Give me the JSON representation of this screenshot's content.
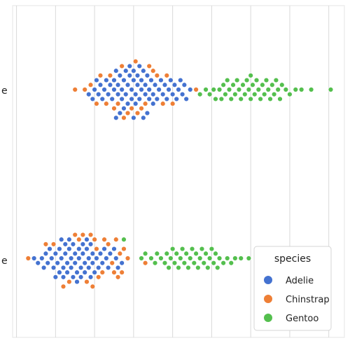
{
  "chart_data": {
    "type": "scatter",
    "subtype": "swarm",
    "orientation": "horizontal",
    "title": "",
    "xlabel": "",
    "ylabel": "",
    "xlim": [
      -0.1,
      8.4
    ],
    "categories": [
      {
        "key": "top",
        "tick_label": "e"
      },
      {
        "key": "bottom",
        "tick_label": "e"
      }
    ],
    "grid": "vertical lines only",
    "legend": {
      "title": "species",
      "placement": "bottom-right",
      "entries": [
        {
          "label": "Adelie",
          "color": "#4472d0"
        },
        {
          "label": "Chinstrap",
          "color": "#ee7f36"
        },
        {
          "label": "Gentoo",
          "color": "#54bf4e"
        }
      ]
    },
    "series": [
      {
        "name": "Adelie",
        "color": "#4472d0",
        "values": {
          "top": [
            1.85,
            1.95,
            2.0,
            2.05,
            2.1,
            2.15,
            2.2,
            2.25,
            2.3,
            2.35,
            2.4,
            2.45,
            2.5,
            2.5,
            2.55,
            2.55,
            2.6,
            2.6,
            2.65,
            2.65,
            2.7,
            2.7,
            2.75,
            2.75,
            2.8,
            2.8,
            2.85,
            2.85,
            2.9,
            2.9,
            2.95,
            2.95,
            3.0,
            3.0,
            3.0,
            3.05,
            3.05,
            3.1,
            3.1,
            3.15,
            3.15,
            3.2,
            3.2,
            3.25,
            3.25,
            3.3,
            3.3,
            3.35,
            3.35,
            3.4,
            3.4,
            3.45,
            3.5,
            3.5,
            3.55,
            3.6,
            3.65,
            3.7,
            3.75,
            3.8,
            3.85,
            3.9,
            3.95,
            4.0,
            4.05,
            4.1,
            4.15,
            4.2,
            4.25,
            4.3,
            4.35,
            4.45
          ],
          "bottom": [
            0.45,
            0.55,
            0.65,
            0.7,
            0.75,
            0.8,
            0.85,
            0.9,
            0.95,
            1.0,
            1.0,
            1.05,
            1.1,
            1.1,
            1.15,
            1.15,
            1.2,
            1.2,
            1.25,
            1.25,
            1.3,
            1.3,
            1.35,
            1.35,
            1.4,
            1.4,
            1.45,
            1.45,
            1.5,
            1.5,
            1.55,
            1.55,
            1.6,
            1.6,
            1.65,
            1.65,
            1.7,
            1.7,
            1.75,
            1.75,
            1.8,
            1.8,
            1.85,
            1.85,
            1.9,
            1.9,
            1.95,
            1.95,
            2.0,
            2.05,
            2.1,
            2.15,
            2.2,
            2.25,
            2.3,
            2.35,
            2.4,
            2.5,
            2.55,
            2.6,
            2.7
          ]
        }
      },
      {
        "name": "Chinstrap",
        "color": "#ee7f36",
        "values": {
          "top": [
            1.5,
            1.75,
            1.9,
            2.05,
            2.15,
            2.3,
            2.4,
            2.5,
            2.6,
            2.7,
            2.75,
            2.85,
            2.95,
            3.05,
            3.1,
            3.2,
            3.3,
            3.4,
            3.5,
            3.6,
            3.75,
            3.85,
            4.0,
            4.6
          ],
          "bottom": [
            0.3,
            0.75,
            0.95,
            1.2,
            1.35,
            1.5,
            1.6,
            1.7,
            1.8,
            1.9,
            1.95,
            2.0,
            2.05,
            2.1,
            2.2,
            2.25,
            2.35,
            2.45,
            2.5,
            2.55,
            2.6,
            2.65,
            2.7,
            2.75,
            2.85,
            3.3
          ]
        }
      },
      {
        "name": "Gentoo",
        "color": "#54bf4e",
        "values": {
          "top": [
            4.7,
            4.85,
            4.95,
            5.05,
            5.1,
            5.2,
            5.25,
            5.3,
            5.35,
            5.4,
            5.45,
            5.5,
            5.55,
            5.6,
            5.65,
            5.7,
            5.75,
            5.8,
            5.85,
            5.9,
            5.95,
            6.0,
            6.0,
            6.05,
            6.1,
            6.15,
            6.2,
            6.25,
            6.3,
            6.35,
            6.4,
            6.45,
            6.5,
            6.55,
            6.6,
            6.65,
            6.7,
            6.75,
            6.8,
            6.9,
            7.0,
            7.15,
            7.3,
            7.55,
            8.05
          ],
          "bottom": [
            2.75,
            3.2,
            3.3,
            3.45,
            3.55,
            3.6,
            3.7,
            3.8,
            3.85,
            3.9,
            3.95,
            4.0,
            4.05,
            4.1,
            4.15,
            4.2,
            4.25,
            4.3,
            4.35,
            4.4,
            4.45,
            4.5,
            4.55,
            4.6,
            4.65,
            4.7,
            4.75,
            4.8,
            4.85,
            4.9,
            4.95,
            5.0,
            5.05,
            5.1,
            5.15,
            5.2,
            5.3,
            5.4,
            5.5,
            5.6,
            5.75,
            5.95
          ]
        }
      }
    ]
  }
}
